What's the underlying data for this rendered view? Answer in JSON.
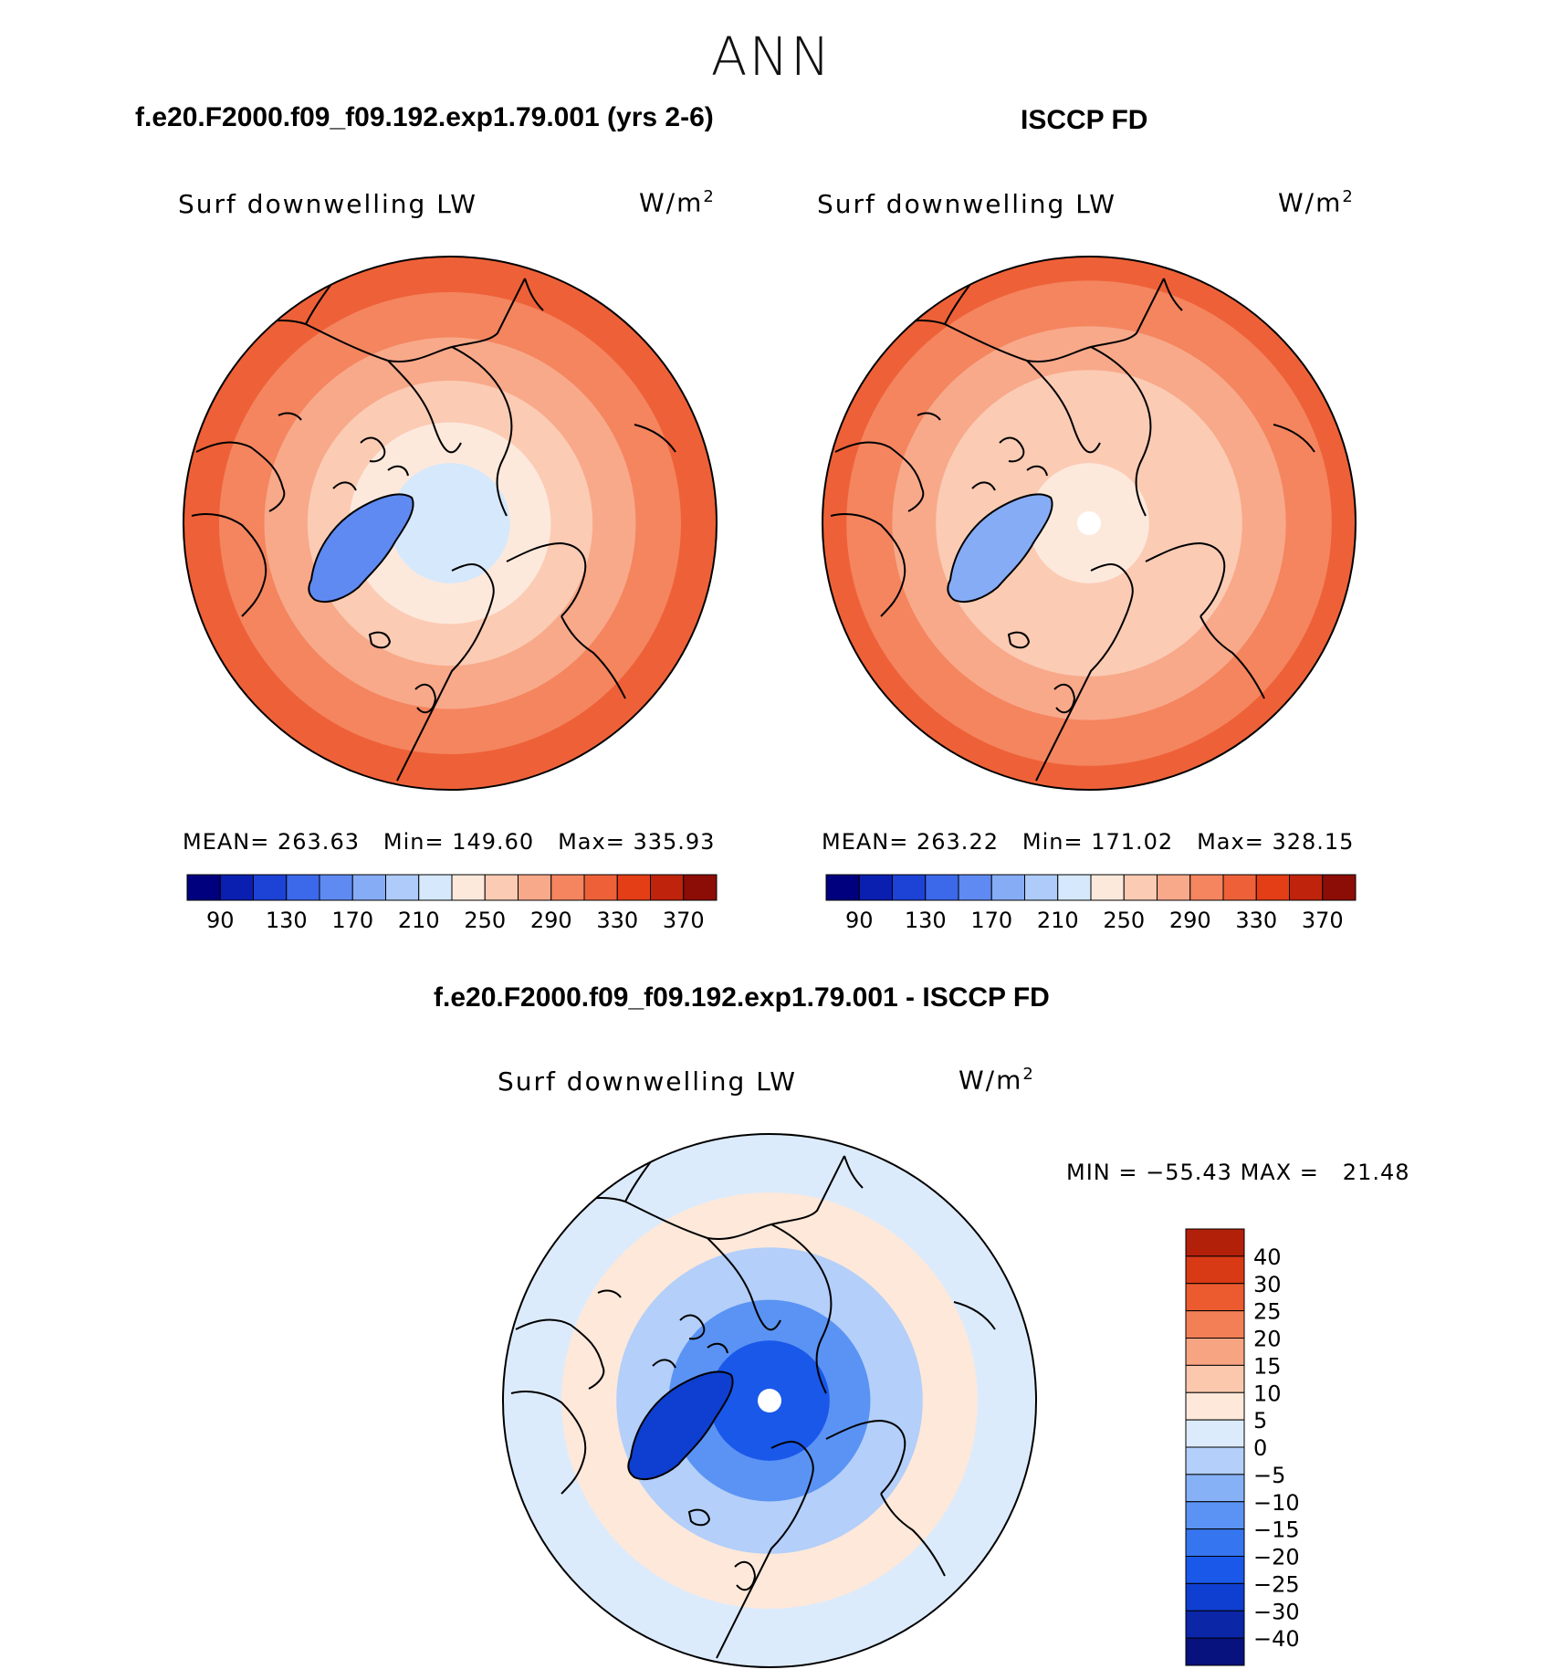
{
  "season": "ANN",
  "colors": {
    "abs_bins": [
      "#00007f",
      "#0a1fb0",
      "#1c42d6",
      "#3c68ea",
      "#5f8af2",
      "#86acf6",
      "#aecbf9",
      "#d6e8fb",
      "#fde9dc",
      "#fbcbb4",
      "#f8a98a",
      "#f4855f",
      "#ee6138",
      "#e33e16",
      "#bf230b",
      "#8c0d06",
      "#6b0000"
    ],
    "diff_bins": [
      "#08127e",
      "#0c26a8",
      "#0f3fd0",
      "#1a58ea",
      "#3575ef",
      "#5a93f3",
      "#86b1f7",
      "#b3cffa",
      "#dcebfc",
      "#fde8da",
      "#fbc8ad",
      "#f7a482",
      "#f37f57",
      "#ec5a30",
      "#d93a16",
      "#b3200a",
      "#820505"
    ],
    "coast": "#000000"
  },
  "panels": [
    {
      "id": "model",
      "title": "f.e20.F2000.f09_f09.192.exp1.79.001 (yrs 2-6)",
      "variable": "Surf downwelling LW",
      "units": "W/m",
      "units_sup": "2",
      "stats": {
        "mean_label": "MEAN=",
        "mean": "263.63",
        "min_label": "Min=",
        "min": "149.60",
        "max_label": "Max=",
        "max": "335.93"
      }
    },
    {
      "id": "obs",
      "title": "ISCCP FD",
      "variable": "Surf downwelling LW",
      "units": "W/m",
      "units_sup": "2",
      "stats": {
        "mean_label": "MEAN=",
        "mean": "263.22",
        "min_label": "Min=",
        "min": "171.02",
        "max_label": "Max=",
        "max": "328.15"
      }
    },
    {
      "id": "diff",
      "title": "f.e20.F2000.f09_f09.192.exp1.79.001 - ISCCP FD",
      "variable": "Surf downwelling LW",
      "units": "W/m",
      "units_sup": "2",
      "stats": {
        "min_label": "MIN =",
        "min": "−55.43",
        "max_label": "MAX =",
        "max": "21.48"
      }
    }
  ],
  "chart_data": [
    {
      "type": "heatmap",
      "projection": "north polar stereographic",
      "title": "f.e20.F2000.f09_f09.192.exp1.79.001 (yrs 2-6)",
      "variable": "Surf downwelling LW",
      "units": "W/m2",
      "colorbar_levels": [
        70,
        90,
        110,
        130,
        150,
        170,
        190,
        210,
        230,
        250,
        270,
        290,
        310,
        330,
        350,
        370,
        390
      ],
      "colorbar_tick_labels": [
        "90",
        "130",
        "170",
        "210",
        "250",
        "290",
        "330",
        "370"
      ],
      "zones_by_colat_deg": [
        {
          "colat": [
            0,
            12
          ],
          "value": 215
        },
        {
          "colat": [
            12,
            20
          ],
          "value": 232
        },
        {
          "colat": [
            20,
            28
          ],
          "value": 250
        },
        {
          "colat": [
            28,
            36
          ],
          "value": 275
        },
        {
          "colat": [
            36,
            44
          ],
          "value": 305
        },
        {
          "colat": [
            44,
            50
          ],
          "value": 325
        }
      ],
      "greenland_min": 150,
      "mean": 263.63,
      "min": 149.6,
      "max": 335.93
    },
    {
      "type": "heatmap",
      "projection": "north polar stereographic",
      "title": "ISCCP FD",
      "variable": "Surf downwelling LW",
      "units": "W/m2",
      "colorbar_levels": [
        70,
        90,
        110,
        130,
        150,
        170,
        190,
        210,
        230,
        250,
        270,
        290,
        310,
        330,
        350,
        370,
        390
      ],
      "colorbar_tick_labels": [
        "90",
        "130",
        "170",
        "210",
        "250",
        "290",
        "330",
        "370"
      ],
      "zones_by_colat_deg": [
        {
          "colat": [
            0,
            12
          ],
          "value": 238
        },
        {
          "colat": [
            12,
            22
          ],
          "value": 250
        },
        {
          "colat": [
            22,
            30
          ],
          "value": 262
        },
        {
          "colat": [
            30,
            38
          ],
          "value": 285
        },
        {
          "colat": [
            38,
            46
          ],
          "value": 305
        },
        {
          "colat": [
            46,
            50
          ],
          "value": 320
        }
      ],
      "greenland_min": 172,
      "mean": 263.22,
      "min": 171.02,
      "max": 328.15
    },
    {
      "type": "heatmap",
      "projection": "north polar stereographic",
      "title": "f.e20.F2000.f09_f09.192.exp1.79.001 - ISCCP FD",
      "variable": "Surf downwelling LW",
      "units": "W/m2",
      "colorbar_levels": [
        -50,
        -40,
        -30,
        -25,
        -20,
        -15,
        -10,
        -5,
        0,
        5,
        10,
        15,
        20,
        25,
        30,
        40
      ],
      "colorbar_tick_labels": [
        "40",
        "30",
        "25",
        "20",
        "15",
        "10",
        "5",
        "0",
        "−5",
        "−10",
        "−15",
        "−20",
        "−25",
        "−30",
        "−40"
      ],
      "zones_by_colat_deg": [
        {
          "colat": [
            0,
            12
          ],
          "value": -22
        },
        {
          "colat": [
            12,
            20
          ],
          "value": -12
        },
        {
          "colat": [
            20,
            30
          ],
          "value": -3
        },
        {
          "colat": [
            30,
            40
          ],
          "value": 7
        },
        {
          "colat": [
            40,
            50
          ],
          "value": 4
        }
      ],
      "greenland_min": -30,
      "min": -55.43,
      "max": 21.48
    }
  ]
}
